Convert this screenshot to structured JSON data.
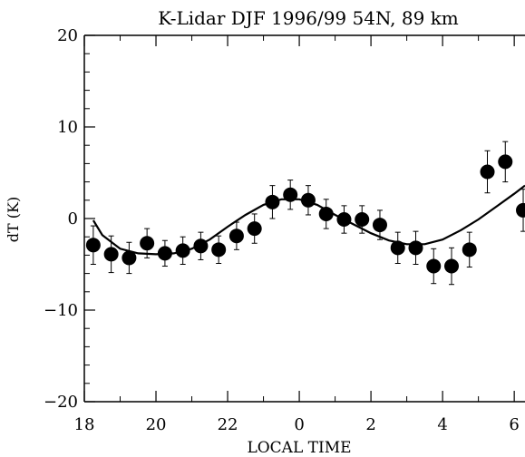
{
  "chart_data": {
    "type": "scatter",
    "title": "K-Lidar DJF 1996/99 54N, 89 km",
    "xlabel": "LOCAL TIME",
    "ylabel": "dT (K)",
    "xlim": [
      18,
      30.3
    ],
    "ylim": [
      -20,
      20
    ],
    "x_ticks": [
      18,
      20,
      22,
      24,
      26,
      28,
      30
    ],
    "x_tick_labels": [
      "18",
      "20",
      "22",
      "0",
      "2",
      "4",
      "6"
    ],
    "y_ticks": [
      -20,
      -10,
      0,
      10,
      20
    ],
    "y_tick_labels": [
      "−20",
      "−10",
      "0",
      "10",
      "20"
    ],
    "grid": false,
    "legend": "none",
    "series": [
      {
        "kind": "points-with-errorbars",
        "x": [
          18.25,
          18.75,
          19.25,
          19.75,
          20.25,
          20.75,
          21.25,
          21.75,
          22.25,
          22.75,
          23.25,
          23.75,
          24.25,
          24.75,
          25.25,
          25.75,
          26.25,
          26.75,
          27.25,
          27.75,
          28.25,
          28.75,
          29.25,
          29.75,
          30.25
        ],
        "y": [
          -2.9,
          -3.9,
          -4.3,
          -2.7,
          -3.8,
          -3.5,
          -3.0,
          -3.4,
          -1.9,
          -1.1,
          1.8,
          2.6,
          2.0,
          0.5,
          -0.1,
          -0.1,
          -0.7,
          -3.2,
          -3.2,
          -5.2,
          -5.2,
          -3.4,
          5.1,
          6.2,
          0.9
        ],
        "err": [
          2.1,
          2.0,
          1.7,
          1.6,
          1.4,
          1.5,
          1.5,
          1.5,
          1.5,
          1.6,
          1.8,
          1.6,
          1.6,
          1.6,
          1.5,
          1.5,
          1.6,
          1.7,
          1.8,
          1.9,
          2.0,
          1.9,
          2.3,
          2.2,
          2.3
        ]
      },
      {
        "kind": "fit-line",
        "x": [
          18.25,
          18.5,
          19,
          19.5,
          20,
          20.5,
          21,
          21.5,
          22,
          22.5,
          23,
          23.5,
          24,
          24.5,
          25,
          25.5,
          26,
          26.5,
          27,
          27.5,
          28,
          28.5,
          29,
          29.5,
          30,
          30.3
        ],
        "y": [
          -0.2,
          -1.8,
          -3.3,
          -3.8,
          -3.9,
          -3.8,
          -3.3,
          -2.3,
          -0.9,
          0.4,
          1.5,
          2.1,
          2.1,
          1.5,
          0.4,
          -0.6,
          -1.6,
          -2.4,
          -2.8,
          -2.8,
          -2.3,
          -1.3,
          -0.1,
          1.3,
          2.7,
          3.6
        ]
      }
    ]
  }
}
